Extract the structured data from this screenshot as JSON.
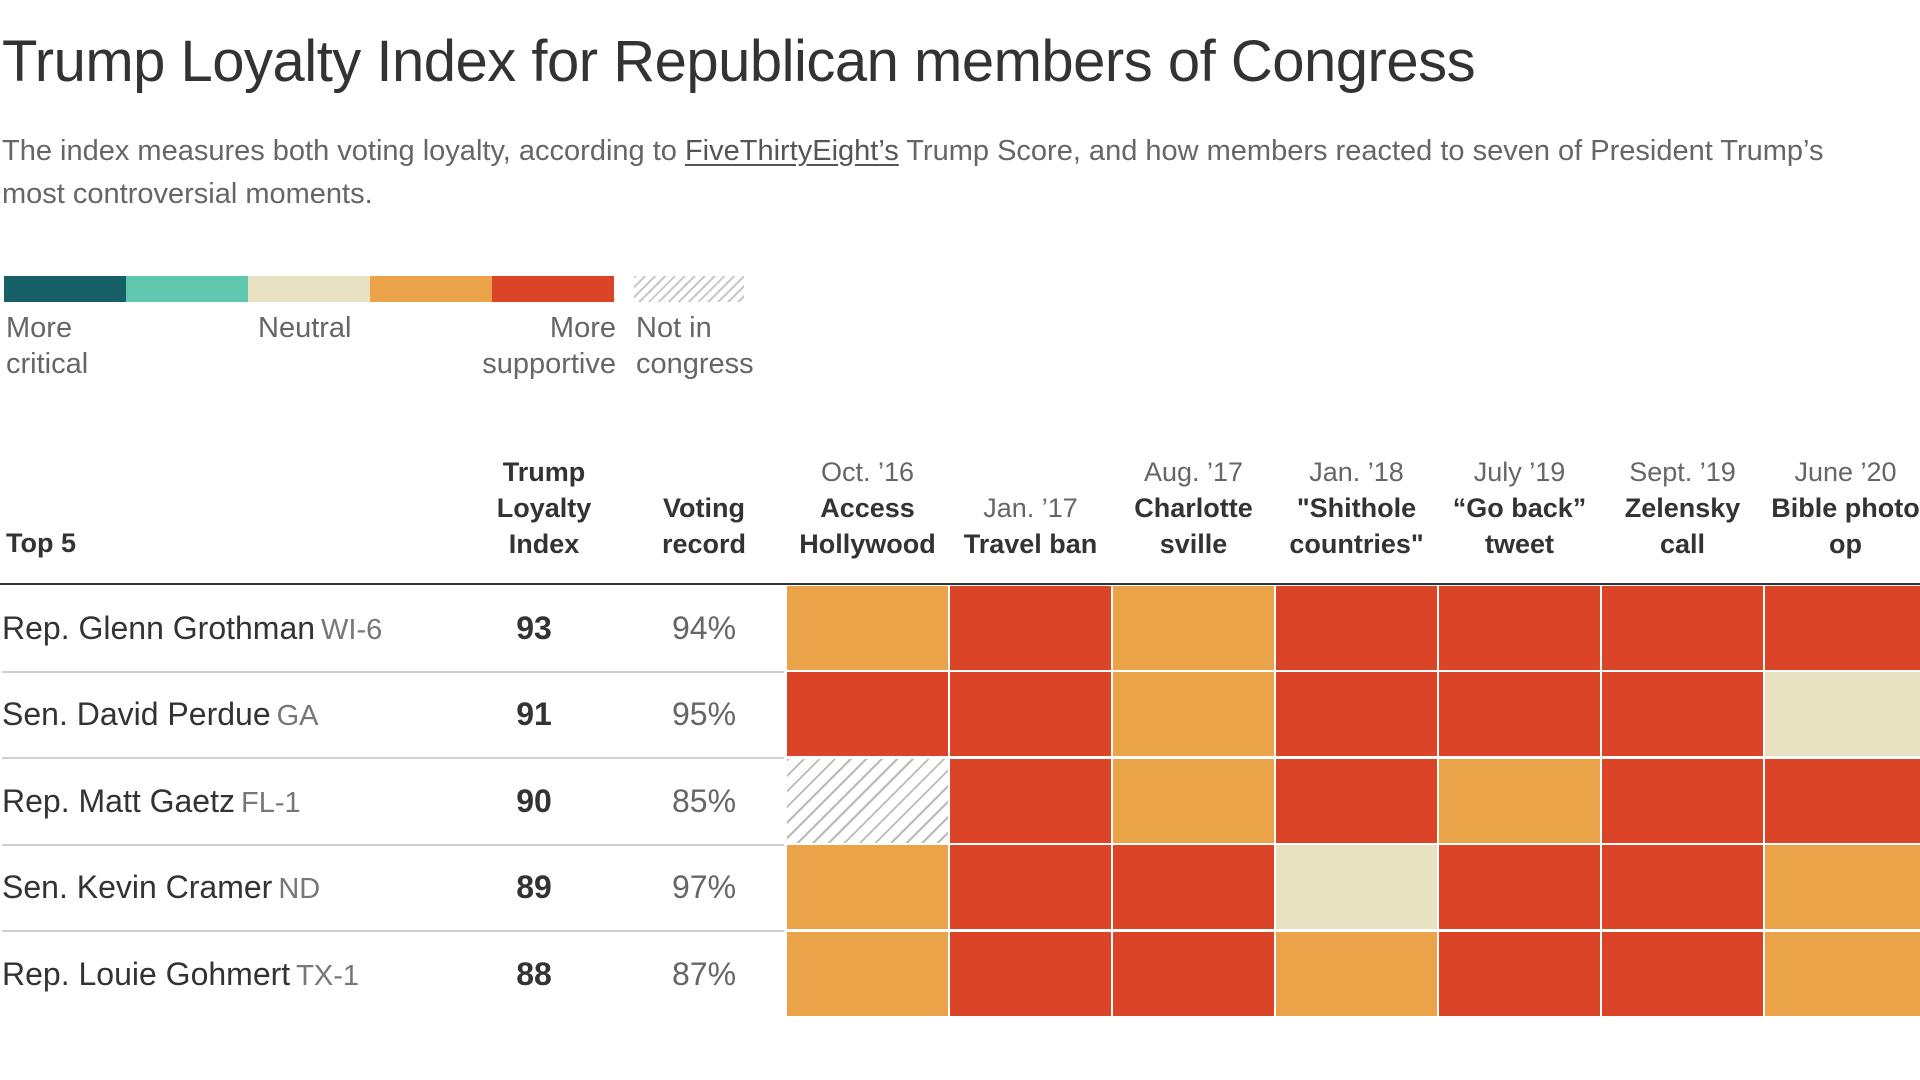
{
  "title": "Trump Loyalty Index for Republican members of Congress",
  "subtitle": {
    "before": "The index measures both voting loyalty, according to ",
    "link": "FiveThirtyEight’s",
    "after": " Trump Score, and how members reacted to seven of President Trump’s most controversial moments."
  },
  "colors": {
    "more_critical": "#175f66",
    "critical": "#5ec7ae",
    "neutral": "#e8e2c3",
    "supportive": "#eba349",
    "more_supportive": "#db4426",
    "not_in_congress": "hatch"
  },
  "legend": {
    "more_critical": "More critical",
    "neutral": "Neutral",
    "more_supportive": "More supportive",
    "not_in_congress": "Not in congress"
  },
  "table_header": {
    "top5": "Top 5",
    "loyalty_index": "Trump Loyalty Index",
    "voting_record": "Voting record"
  },
  "chart_data": {
    "type": "heatmap",
    "events": [
      {
        "date": "Oct. ’16",
        "name": "Access Hollywood"
      },
      {
        "date": "Jan. ’17",
        "name": "Travel ban"
      },
      {
        "date": "Aug. ’17",
        "name": "Charlotte sville"
      },
      {
        "date": "Jan. ’18",
        "name": "\"Shithole countries\""
      },
      {
        "date": "July ’19",
        "name": "“Go back” tweet"
      },
      {
        "date": "Sept. ’19",
        "name": "Zelensky call"
      },
      {
        "date": "June ’20",
        "name": "Bible photo op"
      }
    ],
    "rows": [
      {
        "name": "Rep. Glenn Grothman",
        "state": "WI-6",
        "index": "93",
        "voting": "94%",
        "cells": [
          "supportive",
          "more_supportive",
          "supportive",
          "more_supportive",
          "more_supportive",
          "more_supportive",
          "more_supportive"
        ]
      },
      {
        "name": "Sen. David Perdue",
        "state": "GA",
        "index": "91",
        "voting": "95%",
        "cells": [
          "more_supportive",
          "more_supportive",
          "supportive",
          "more_supportive",
          "more_supportive",
          "more_supportive",
          "neutral"
        ]
      },
      {
        "name": "Rep. Matt Gaetz",
        "state": "FL-1",
        "index": "90",
        "voting": "85%",
        "cells": [
          "not_in_congress",
          "more_supportive",
          "supportive",
          "more_supportive",
          "supportive",
          "more_supportive",
          "more_supportive"
        ]
      },
      {
        "name": "Sen. Kevin Cramer",
        "state": "ND",
        "index": "89",
        "voting": "97%",
        "cells": [
          "supportive",
          "more_supportive",
          "more_supportive",
          "neutral",
          "more_supportive",
          "more_supportive",
          "supportive"
        ]
      },
      {
        "name": "Rep. Louie Gohmert",
        "state": "TX-1",
        "index": "88",
        "voting": "87%",
        "cells": [
          "supportive",
          "more_supportive",
          "more_supportive",
          "supportive",
          "more_supportive",
          "more_supportive",
          "supportive"
        ]
      }
    ]
  }
}
